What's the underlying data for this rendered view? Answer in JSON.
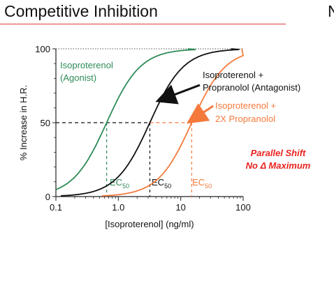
{
  "slide": {
    "title": "Competitive Inhibition",
    "cut_off_glyph": "N"
  },
  "chart_data": {
    "type": "line",
    "title": "Competitive Inhibition",
    "xlabel": "[Isoproterenol] (ng/ml)",
    "ylabel": "% Increase in H.R.",
    "x_scale": "log",
    "xlim": [
      0.1,
      150
    ],
    "ylim": [
      0,
      100
    ],
    "x_ticks": [
      "0.1",
      "1.0",
      "10",
      "100"
    ],
    "y_ticks": [
      "0",
      "50",
      "100"
    ],
    "grid": false,
    "series": [
      {
        "name": "Isoproterenol (Agonist)",
        "label_lines": [
          "Isoproterenol",
          "(Agonist)"
        ],
        "color": "#2e8b57",
        "ec50": 0.65,
        "hill": 1.6,
        "ec50_label": "EC",
        "ec50_sub": "50"
      },
      {
        "name": "Isoproterenol + Propranolol (Antagonist)",
        "label_lines": [
          "Isoproterenol +",
          "Propranolol (Antagonist)"
        ],
        "color": "#111111",
        "ec50": 3.2,
        "hill": 1.6,
        "ec50_label": "EC",
        "ec50_sub": "50"
      },
      {
        "name": "Isoproterenol + 2X Propranolol",
        "label_lines": [
          "Isoproterenol +",
          "2X  Propranolol"
        ],
        "color": "#f47a3c",
        "ec50": 15,
        "hill": 1.6,
        "ec50_label": "EC",
        "ec50_sub": "50"
      }
    ],
    "annotation": {
      "lines": [
        "Parallel Shift",
        "No Δ  Maximum"
      ],
      "color": "#e8231f"
    }
  }
}
